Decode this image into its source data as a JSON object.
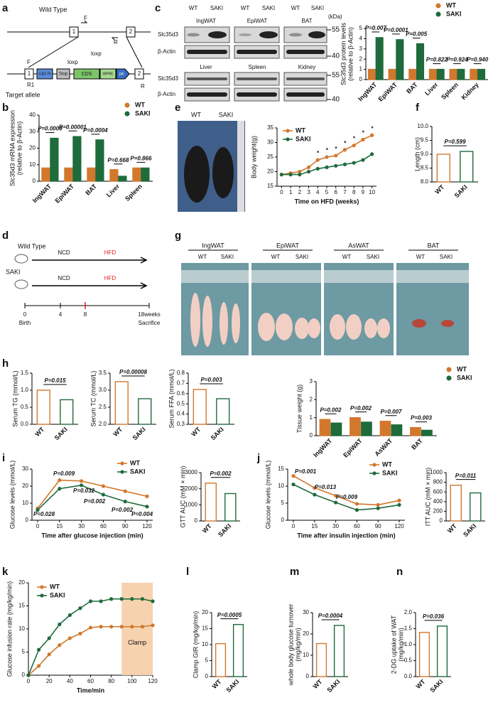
{
  "panel_labels": [
    "a",
    "b",
    "c",
    "d",
    "e",
    "f",
    "g",
    "h",
    "i",
    "j",
    "k",
    "l",
    "m",
    "n"
  ],
  "genotype_diagram": {
    "wild_type": "Wild Type",
    "target_allele": "Target allele",
    "exon1": "1",
    "exon2": "2",
    "exon1_t": "1",
    "exon2_t": "2",
    "f_wt": "F",
    "r_wt": "R",
    "f_t": "F",
    "r_t": "R",
    "r1": "R1",
    "loxp1": "loxp",
    "loxp2": "loxp",
    "promoter": "CAG Pr",
    "stop": "Stop",
    "cds": "CDS",
    "wpre": "WPRE",
    "pa": "pA"
  },
  "western_blot": {
    "groups": [
      "WT",
      "SAKI",
      "WT",
      "SAKI",
      "WT",
      "SAKI"
    ],
    "tissues_top": [
      "IngWAT",
      "EpiWAT",
      "BAT"
    ],
    "tissues_bottom": [
      "Liver",
      "Spleen",
      "Kidney"
    ],
    "rows": [
      "Slc35d3",
      "β-Actin",
      "Slc35d3",
      "β-Actin"
    ],
    "kda": "(kDa)",
    "markers": [
      "55",
      "40",
      "55",
      "40"
    ]
  },
  "timeline": {
    "wild_type": "Wild Type",
    "saki": "SAKI",
    "ncd1": "NCD",
    "hfd1": "HFD",
    "ncd2": "NCD",
    "hfd2": "HFD",
    "ticks": [
      "0",
      "4",
      "8",
      "18weeks"
    ],
    "birth": "Birth",
    "sacrifice": "Sacrifice"
  },
  "mouse_photo": {
    "labels": [
      "WT",
      "SAKI"
    ]
  },
  "tissue_photo": {
    "tissues": [
      "IngWAT",
      "EpiWAT",
      "AsWAT",
      "BAT"
    ],
    "groups": [
      "WT",
      "SAKI",
      "WT",
      "SAKI",
      "WT",
      "SAKI",
      "WT",
      "SAKI"
    ]
  },
  "chart_data": [
    {
      "type": "bar",
      "ylabel": [
        "Slc35d3 protein levels",
        "(relative to β-Actin)"
      ],
      "categories": [
        "IngWAT",
        "EpiWAT",
        "BAT",
        "Liver",
        "Spleen",
        "Kidney"
      ],
      "series": [
        {
          "name": "WT",
          "color": "#d2782d",
          "values": [
            1,
            1,
            1,
            1,
            1,
            1
          ]
        },
        {
          "name": "SAKI",
          "color": "#1e6b3c",
          "values": [
            4.1,
            3.9,
            3.5,
            1.0,
            1.0,
            1.0
          ]
        }
      ],
      "ylim": [
        0,
        5
      ],
      "yticks": [
        0,
        1,
        2,
        3,
        4,
        5
      ],
      "annotations": [
        "P=0.007",
        "P=0.0001",
        "P=0.005",
        "P=0.822",
        "P=0.924",
        "P=0.940"
      ]
    },
    {
      "type": "bar",
      "ylabel": [
        "Slc35d3 mRNA expression",
        "(relative to β-Actin)"
      ],
      "categories": [
        "IngWAT",
        "EpiWAT",
        "BAT",
        "Liver",
        "Spleen"
      ],
      "series": [
        {
          "name": "WT",
          "color": "#d2782d",
          "values": [
            8,
            8,
            8,
            7,
            8
          ]
        },
        {
          "name": "SAKI",
          "color": "#1e6b3c",
          "values": [
            26,
            27,
            25,
            3,
            8
          ]
        }
      ],
      "ylim": [
        0,
        40
      ],
      "yticks": [
        0,
        10,
        20,
        30,
        40
      ],
      "annotations": [
        "P=0.0009",
        "P=0.00001",
        "P=0.0004",
        "P=0.668",
        "P=0.866"
      ]
    },
    {
      "type": "line",
      "ylabel": "Body weight(g)",
      "xlabel": "Time on HFD (weeks)",
      "x": [
        0,
        1,
        2,
        3,
        4,
        5,
        6,
        7,
        8,
        9,
        10
      ],
      "series": [
        {
          "name": "WT",
          "color": "#d2782d",
          "values": [
            19,
            19.5,
            20,
            21.5,
            24,
            25,
            25.5,
            27.5,
            29,
            31,
            32.5
          ]
        },
        {
          "name": "SAKI",
          "color": "#1e6b3c",
          "values": [
            19,
            19,
            19,
            20,
            21,
            21.5,
            22,
            22.5,
            23,
            24,
            26
          ]
        }
      ],
      "xlim": [
        -0.5,
        10.5
      ],
      "xticks": [
        0,
        1,
        2,
        3,
        4,
        5,
        6,
        7,
        8,
        9,
        10
      ],
      "ylim": [
        15,
        35
      ],
      "yticks": [
        15,
        20,
        25,
        30,
        35
      ],
      "annotations": [
        "*",
        "*",
        "*",
        "*",
        "*",
        "*",
        "*"
      ]
    },
    {
      "type": "bar",
      "ylabel": "Length (cm)",
      "categories": [
        "WT",
        "SAKI"
      ],
      "values": [
        9.0,
        9.1
      ],
      "colors": [
        "#d2782d",
        "#1e6b3c"
      ],
      "filled": false,
      "ylim": [
        8,
        10
      ],
      "yticks": [
        {
          "value": 8,
          "label": "8.0"
        },
        8.5,
        {
          "value": 9,
          "label": "9.0"
        },
        9.5,
        {
          "value": 10,
          "label": "10.0"
        }
      ],
      "annotations": [
        "P=0.599"
      ]
    },
    {
      "type": "bar",
      "ylabel": "Serum TG (mmol/L)",
      "categories": [
        "WT",
        "SAKI"
      ],
      "values": [
        1.0,
        0.72
      ],
      "colors": [
        "#d2782d",
        "#1e6b3c"
      ],
      "filled": false,
      "ylim": [
        0,
        1.5
      ],
      "yticks": [
        {
          "value": 0,
          "label": "0.0"
        },
        0.5,
        {
          "value": 1,
          "label": "1.0"
        },
        1.5
      ],
      "annotations": [
        "P=0.015"
      ]
    },
    {
      "type": "bar",
      "ylabel": "Serum TC (mmol/L)",
      "categories": [
        "WT",
        "SAKI"
      ],
      "values": [
        3.25,
        2.75
      ],
      "colors": [
        "#d2782d",
        "#1e6b3c"
      ],
      "filled": false,
      "ylim": [
        2,
        3.5
      ],
      "yticks": [
        {
          "value": 2,
          "label": "2.0"
        },
        2.5,
        {
          "value": 3,
          "label": "3.0"
        },
        3.5
      ],
      "annotations": [
        "P=0.00008"
      ]
    },
    {
      "type": "bar",
      "ylabel": "Serum FFA (mmol/L)",
      "categories": [
        "WT",
        "SAKI"
      ],
      "values": [
        0.64,
        0.55
      ],
      "colors": [
        "#d2782d",
        "#1e6b3c"
      ],
      "filled": false,
      "ylim": [
        0.3,
        0.8
      ],
      "yticks": [
        0.3,
        0.4,
        0.5,
        0.6,
        0.7,
        0.8
      ],
      "annotations": [
        "P=0.003"
      ]
    },
    {
      "type": "bar",
      "ylabel": "Tissue weight (g)",
      "categories": [
        "IngWAT",
        "EpiWAT",
        "AsWAT",
        "BAT"
      ],
      "series": [
        {
          "name": "WT",
          "color": "#d2782d",
          "values": [
            0.9,
            1.0,
            0.8,
            0.45
          ]
        },
        {
          "name": "SAKI",
          "color": "#1e6b3c",
          "values": [
            0.7,
            0.75,
            0.6,
            0.3
          ]
        }
      ],
      "ylim": [
        0,
        3
      ],
      "yticks": [
        0,
        1,
        2,
        3
      ],
      "annotations": [
        "P=0.002",
        "P=0.002",
        "P=0.007",
        "P=0.003"
      ]
    },
    {
      "type": "line",
      "ylabel": "Glucose levels (mmol/L)",
      "xlabel": "Time after glucose injection (min)",
      "categories": [
        "0",
        "15",
        "30",
        "60",
        "90",
        "120"
      ],
      "series": [
        {
          "name": "WT",
          "color": "#d2782d",
          "values": [
            7,
            23.5,
            23,
            20,
            17,
            14
          ]
        },
        {
          "name": "SAKI",
          "color": "#1e6b3c",
          "values": [
            6,
            18.5,
            20.5,
            15,
            11,
            8
          ]
        }
      ],
      "ylim": [
        0,
        30
      ],
      "yticks": [
        0,
        10,
        20,
        30
      ],
      "annotations": [
        "P=0.009",
        "P=0.028",
        "P=0.032",
        "P=0.002",
        "P=0.002",
        "P=0.004"
      ]
    },
    {
      "type": "bar",
      "ylabel": "GTT AUC (mM × min)",
      "categories": [
        "WT",
        "SAKI"
      ],
      "values": [
        2350,
        1700
      ],
      "colors": [
        "#d2782d",
        "#1e6b3c"
      ],
      "filled": false,
      "ylim": [
        0,
        3000
      ],
      "yticks": [
        0,
        1000,
        2000,
        3000
      ],
      "annotations": [
        "P=0.002"
      ]
    },
    {
      "type": "line",
      "ylabel": "Glucose levels (mmol/L)",
      "xlabel": "Time after insulin injection (min)",
      "categories": [
        "0",
        "15",
        "30",
        "60",
        "90",
        "120"
      ],
      "series": [
        {
          "name": "WT",
          "color": "#d2782d",
          "values": [
            13,
            9.5,
            7.2,
            4.8,
            4.5,
            5.8
          ]
        },
        {
          "name": "SAKI",
          "color": "#1e6b3c",
          "values": [
            10.5,
            7.5,
            5.2,
            3,
            3.5,
            4.5
          ]
        }
      ],
      "ylim": [
        0,
        15
      ],
      "yticks": [
        0,
        5,
        10,
        15
      ],
      "annotations": [
        "P=0.001",
        "P=0.013",
        "P=0.009"
      ]
    },
    {
      "type": "bar",
      "ylabel": "ITT AUC (mM × min)",
      "categories": [
        "WT",
        "SAKI"
      ],
      "values": [
        740,
        580
      ],
      "colors": [
        "#d2782d",
        "#1e6b3c"
      ],
      "filled": false,
      "ylim": [
        0,
        1000
      ],
      "yticks": [
        0,
        200,
        400,
        600,
        800,
        1000
      ],
      "annotations": [
        "P=0.011"
      ]
    },
    {
      "type": "line",
      "ylabel": "Glucose infusion rate (mg/kg/min)",
      "xlabel": "Time/min",
      "x": [
        0,
        10,
        20,
        30,
        40,
        50,
        60,
        70,
        80,
        90,
        100,
        110,
        120
      ],
      "series": [
        {
          "name": "WT",
          "color": "#d2782d",
          "values": [
            0,
            2,
            4.5,
            6.5,
            8,
            9,
            10.3,
            10.5,
            10.5,
            10.5,
            10.5,
            10.5,
            10.8
          ]
        },
        {
          "name": "SAKI",
          "color": "#1e6b3c",
          "values": [
            0,
            5.5,
            8,
            11,
            13,
            14.5,
            16,
            16,
            16.5,
            16.5,
            16.5,
            16.5,
            16
          ]
        }
      ],
      "xlim": [
        0,
        120
      ],
      "xticks": [
        0,
        20,
        40,
        60,
        80,
        100,
        120
      ],
      "ylim": [
        0,
        20
      ],
      "yticks": [
        0,
        5,
        10,
        15,
        20
      ],
      "span": [
        90,
        120
      ],
      "span_label": "Clamp",
      "span_color": "#f6d2ae"
    },
    {
      "type": "bar",
      "ylabel": "Clamp GIR (mg/kg/min)",
      "categories": [
        "WT",
        "SAKI"
      ],
      "values": [
        10.3,
        16.3
      ],
      "colors": [
        "#d2782d",
        "#1e6b3c"
      ],
      "filled": false,
      "ylim": [
        0,
        20
      ],
      "yticks": [
        0,
        5,
        10,
        15,
        20
      ],
      "annotations": [
        "P=0.0005"
      ]
    },
    {
      "type": "bar",
      "ylabel": [
        "whole body glucose turnover",
        "(mg/kg/min)"
      ],
      "categories": [
        "WT",
        "SAKI"
      ],
      "values": [
        15.5,
        24
      ],
      "colors": [
        "#d2782d",
        "#1e6b3c"
      ],
      "filled": false,
      "ylim": [
        0,
        30
      ],
      "yticks": [
        0,
        10,
        20,
        30
      ],
      "annotations": [
        "P=0.0004"
      ]
    },
    {
      "type": "bar",
      "ylabel": [
        "2-DG uptake of WAT",
        "(mg/kg/min)"
      ],
      "categories": [
        "WT",
        "SAKI"
      ],
      "values": [
        1.38,
        1.58
      ],
      "colors": [
        "#d2782d",
        "#1e6b3c"
      ],
      "filled": false,
      "ylim": [
        0,
        2
      ],
      "yticks": [
        {
          "value": 0,
          "label": "0.0"
        },
        0.5,
        {
          "value": 1,
          "label": "1.0"
        },
        1.5,
        {
          "value": 2,
          "label": "2.0"
        }
      ],
      "annotations": [
        "P=0.036"
      ]
    }
  ]
}
